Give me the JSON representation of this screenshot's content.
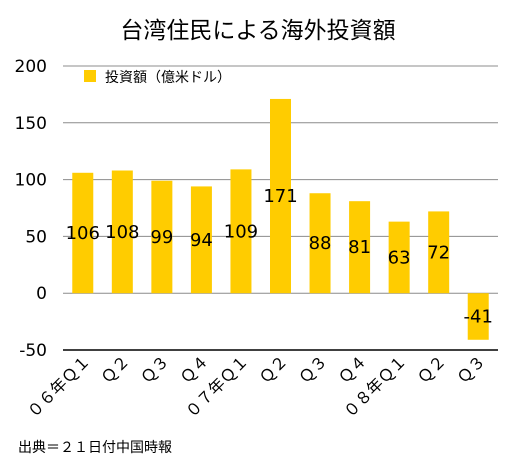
{
  "chart_data": {
    "type": "bar",
    "title": "台湾住民による海外投資額",
    "categories": [
      "０６年Ｑ１",
      "Ｑ２",
      "Ｑ３",
      "Ｑ４",
      "０７年Ｑ１",
      "Ｑ２",
      "Ｑ３",
      "Ｑ４",
      "０８年Ｑ１",
      "Ｑ２",
      "Ｑ３"
    ],
    "series": [
      {
        "name": "投資額（億米ドル）",
        "values": [
          106,
          108,
          99,
          94,
          109,
          171,
          88,
          81,
          63,
          72,
          -41
        ],
        "color": "#FFCC00"
      }
    ],
    "ylim": [
      -50,
      200
    ],
    "yticks": [
      200,
      150,
      100,
      50,
      0,
      -50
    ],
    "grid": true,
    "legend_position": "top-left",
    "source": "出典＝２１日付中国時報"
  }
}
